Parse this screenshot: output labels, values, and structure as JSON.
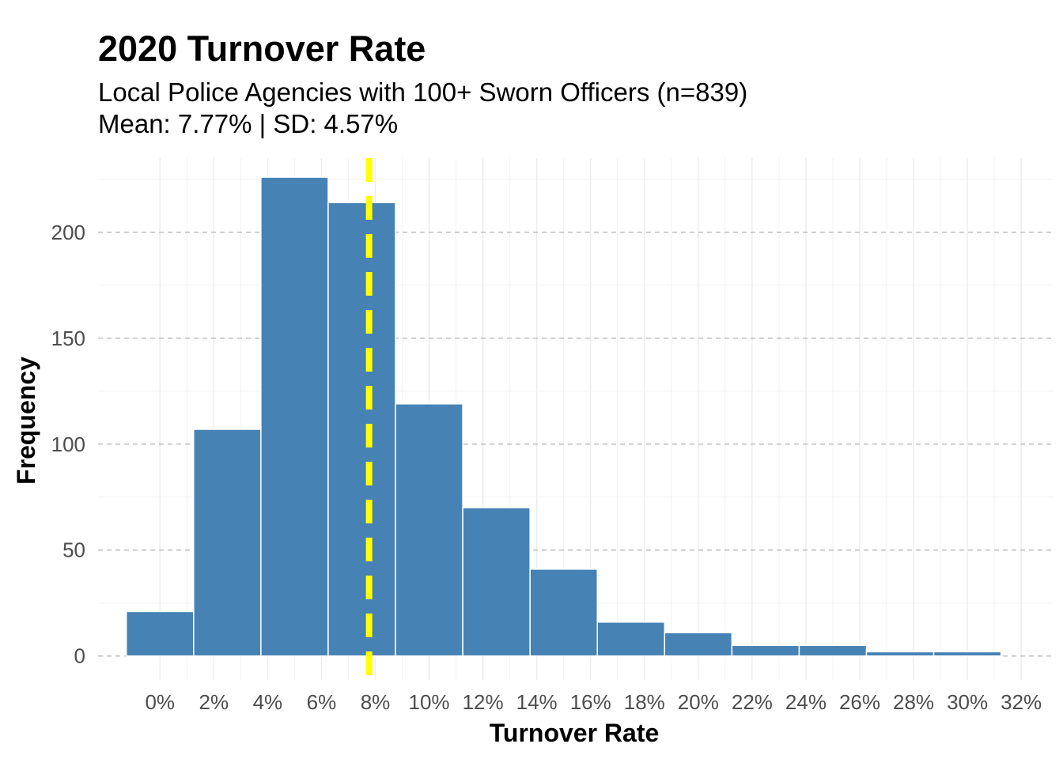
{
  "chart_data": {
    "type": "bar",
    "title": "2020 Turnover Rate",
    "subtitle_lines": [
      "Local Police Agencies with 100+ Sworn Officers (n=839)",
      "Mean: 7.77% | SD: 4.57%"
    ],
    "xlabel": "Turnover Rate",
    "ylabel": "Frequency",
    "x_ticks": [
      "0%",
      "2%",
      "4%",
      "6%",
      "8%",
      "10%",
      "12%",
      "14%",
      "16%",
      "18%",
      "20%",
      "22%",
      "24%",
      "26%",
      "28%",
      "30%",
      "32%"
    ],
    "x_tick_values": [
      0,
      2,
      4,
      6,
      8,
      10,
      12,
      14,
      16,
      18,
      20,
      22,
      24,
      26,
      28,
      30,
      32
    ],
    "y_ticks": [
      "0",
      "50",
      "100",
      "150",
      "200"
    ],
    "y_tick_values": [
      0,
      50,
      100,
      150,
      200
    ],
    "xlim": [
      -2.3,
      33.2
    ],
    "ylim": [
      -11.3,
      235
    ],
    "bin_width": 2.5,
    "bins": [
      {
        "start": -1.25,
        "end": 1.25,
        "count": 21
      },
      {
        "start": 1.25,
        "end": 3.75,
        "count": 107
      },
      {
        "start": 3.75,
        "end": 6.25,
        "count": 226
      },
      {
        "start": 6.25,
        "end": 8.75,
        "count": 214
      },
      {
        "start": 8.75,
        "end": 11.25,
        "count": 119
      },
      {
        "start": 11.25,
        "end": 13.75,
        "count": 70
      },
      {
        "start": 13.75,
        "end": 16.25,
        "count": 41
      },
      {
        "start": 16.25,
        "end": 18.75,
        "count": 16
      },
      {
        "start": 18.75,
        "end": 21.25,
        "count": 11
      },
      {
        "start": 21.25,
        "end": 23.75,
        "count": 5
      },
      {
        "start": 23.75,
        "end": 26.25,
        "count": 5
      },
      {
        "start": 26.25,
        "end": 28.75,
        "count": 2
      },
      {
        "start": 28.75,
        "end": 31.25,
        "count": 2
      }
    ],
    "mean_line": {
      "value": 7.77,
      "color": "#FFFF00",
      "style": "dashed"
    },
    "bar_color": "#4682B4",
    "bar_outline": "#FFFFFF",
    "y_grid": "dashed",
    "x_grid": true
  }
}
